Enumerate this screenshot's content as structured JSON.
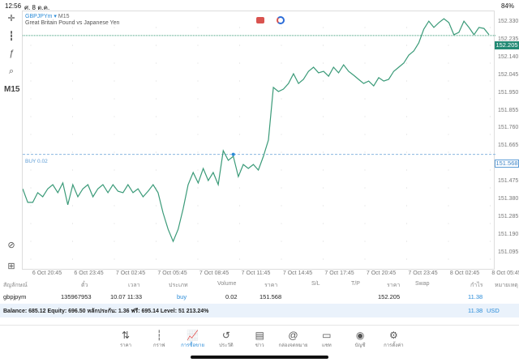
{
  "status": {
    "time": "12:56",
    "date": "ศ. 8 ต.ค.",
    "battery": "84%"
  },
  "toolbar": {
    "timeframe": "M15"
  },
  "chart": {
    "symbol": "GBPJPYm",
    "timeframe": "M15",
    "description": "Great Britain Pound vs Japanese Yen",
    "order_label": "BUY 0.02",
    "current_price": "152.205",
    "order_price": "151.568",
    "line_color": "#3a9a78"
  },
  "chart_data": {
    "type": "line",
    "title": "GBPJPYm M15",
    "ylim": [
      151.035,
      152.39
    ],
    "y_ticks": [
      "152.330",
      "152.235",
      "152.140",
      "152.045",
      "151.950",
      "151.855",
      "151.760",
      "151.665",
      "151.568",
      "151.475",
      "151.380",
      "151.285",
      "151.190",
      "151.095"
    ],
    "x_ticks": [
      "6 Oct 20:45",
      "6 Oct 23:45",
      "7 Oct 02:45",
      "7 Oct 05:45",
      "7 Oct 08:45",
      "7 Oct 11:45",
      "7 Oct 14:45",
      "7 Oct 17:45",
      "7 Oct 20:45",
      "7 Oct 23:45",
      "8 Oct 02:45",
      "8 Oct 05:45"
    ],
    "values": [
      151.384,
      151.311,
      151.311,
      151.363,
      151.341,
      151.384,
      151.406,
      151.363,
      151.415,
      151.298,
      151.406,
      151.341,
      151.384,
      151.406,
      151.341,
      151.384,
      151.406,
      151.363,
      151.406,
      151.371,
      151.363,
      151.406,
      151.363,
      151.384,
      151.341,
      151.371,
      151.406,
      151.363,
      151.254,
      151.167,
      151.102,
      151.167,
      151.276,
      151.406,
      151.471,
      151.415,
      151.493,
      151.428,
      151.471,
      151.406,
      151.588,
      151.536,
      151.558,
      151.449,
      151.514,
      151.493,
      151.514,
      151.484,
      151.558,
      151.645,
      151.927,
      151.905,
      151.918,
      151.948,
      152.0,
      151.948,
      151.97,
      152.013,
      152.035,
      152.005,
      152.013,
      151.987,
      152.035,
      152.005,
      152.048,
      152.013,
      151.992,
      151.97,
      151.948,
      151.961,
      151.935,
      151.979,
      151.961,
      151.97,
      152.013,
      152.035,
      152.057,
      152.1,
      152.122,
      152.165,
      152.239,
      152.282,
      152.248,
      152.274,
      152.295,
      152.274,
      152.209,
      152.222,
      152.282,
      152.248,
      152.209,
      152.248,
      152.243,
      152.209
    ]
  },
  "table": {
    "headers": [
      "สัญลักษณ์",
      "ตั๋ว",
      "เวลา",
      "ประเภท",
      "Volume",
      "ราคา",
      "S/L",
      "T/P",
      "ราคา",
      "Swap",
      "กำไร",
      "หมายเหตุ"
    ],
    "row": {
      "symbol": "gbpjpym",
      "ticket": "135967953",
      "time": "10.07 11:33",
      "type": "buy",
      "volume": "0.02",
      "open_price": "151.568",
      "current_price": "152.205",
      "profit": "11.38"
    },
    "summary": "Balance: 685.12 Equity: 696.50 หลักประกัน: 1.36 ฟรี: 695.14 Level: 51 213.24%",
    "total_profit": "11.38",
    "currency": "USD"
  },
  "nav": [
    {
      "label": "ราคา",
      "icon": "⇅"
    },
    {
      "label": "กราฟ",
      "icon": "┆"
    },
    {
      "label": "การซื้อขาย",
      "icon": "📈"
    },
    {
      "label": "ประวัติ",
      "icon": "↺"
    },
    {
      "label": "ข่าว",
      "icon": "▤"
    },
    {
      "label": "กล่องจดหมาย",
      "icon": "@"
    },
    {
      "label": "แชท",
      "icon": "▭"
    },
    {
      "label": "บัญชี",
      "icon": "◉"
    },
    {
      "label": "การตั้งค่า",
      "icon": "⚙"
    }
  ]
}
